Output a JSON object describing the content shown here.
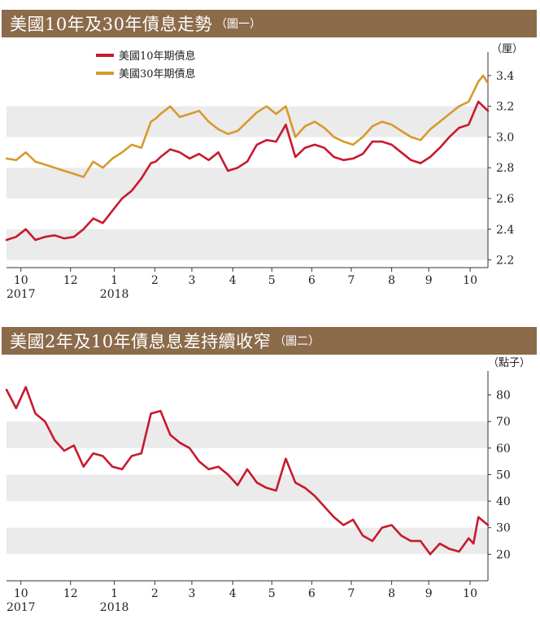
{
  "charts": [
    {
      "title": "美國10年及30年債息走勢",
      "subtitle": "（圖一）",
      "unit_label": "（厘）",
      "legend": [
        {
          "name": "美國10年期債息",
          "color": "#c8192e"
        },
        {
          "name": "美國30年期債息",
          "color": "#d79a2c"
        }
      ],
      "x_ticks": [
        {
          "label": "10",
          "year": "2017",
          "t": 0.03
        },
        {
          "label": "12",
          "year": "",
          "t": 0.133
        },
        {
          "label": "1",
          "year": "2018",
          "t": 0.224
        },
        {
          "label": "2",
          "year": "",
          "t": 0.308
        },
        {
          "label": "3",
          "year": "",
          "t": 0.385
        },
        {
          "label": "4",
          "year": "",
          "t": 0.47
        },
        {
          "label": "5",
          "year": "",
          "t": 0.551
        },
        {
          "label": "6",
          "year": "",
          "t": 0.634
        },
        {
          "label": "7",
          "year": "",
          "t": 0.716
        },
        {
          "label": "8",
          "year": "",
          "t": 0.8
        },
        {
          "label": "9",
          "year": "",
          "t": 0.877
        },
        {
          "label": "10",
          "year": "",
          "t": 0.963
        }
      ]
    },
    {
      "title": "美國2年及10年債息息差持續收窄",
      "subtitle": "（圖二）",
      "unit_label": "（點子）",
      "legend": [],
      "x_ticks": [
        {
          "label": "10",
          "year": "2017",
          "t": 0.03
        },
        {
          "label": "12",
          "year": "",
          "t": 0.133
        },
        {
          "label": "1",
          "year": "2018",
          "t": 0.224
        },
        {
          "label": "2",
          "year": "",
          "t": 0.308
        },
        {
          "label": "3",
          "year": "",
          "t": 0.385
        },
        {
          "label": "4",
          "year": "",
          "t": 0.47
        },
        {
          "label": "5",
          "year": "",
          "t": 0.551
        },
        {
          "label": "6",
          "year": "",
          "t": 0.634
        },
        {
          "label": "7",
          "year": "",
          "t": 0.716
        },
        {
          "label": "8",
          "year": "",
          "t": 0.8
        },
        {
          "label": "9",
          "year": "",
          "t": 0.877
        },
        {
          "label": "10",
          "year": "",
          "t": 0.963
        }
      ]
    }
  ],
  "chart_data": [
    {
      "type": "line",
      "title": "美國10年及30年債息走勢",
      "ylabel": "厘",
      "ylim": [
        2.15,
        3.5
      ],
      "yticks": [
        2.2,
        2.4,
        2.6,
        2.8,
        3.0,
        3.2,
        3.4
      ],
      "grid": "alternating horizontal bands",
      "legend_position": "top-left",
      "series": [
        {
          "name": "美國10年期債息",
          "color": "#c8192e",
          "t": [
            0,
            0.02,
            0.04,
            0.06,
            0.08,
            0.1,
            0.12,
            0.14,
            0.16,
            0.18,
            0.2,
            0.22,
            0.24,
            0.26,
            0.28,
            0.3,
            0.31,
            0.32,
            0.34,
            0.36,
            0.38,
            0.4,
            0.42,
            0.44,
            0.46,
            0.48,
            0.5,
            0.52,
            0.54,
            0.56,
            0.58,
            0.6,
            0.62,
            0.64,
            0.66,
            0.68,
            0.7,
            0.72,
            0.74,
            0.76,
            0.78,
            0.8,
            0.82,
            0.84,
            0.86,
            0.88,
            0.9,
            0.92,
            0.94,
            0.96,
            0.98,
            1.0
          ],
          "values": [
            2.33,
            2.35,
            2.4,
            2.33,
            2.35,
            2.36,
            2.34,
            2.35,
            2.4,
            2.47,
            2.44,
            2.52,
            2.6,
            2.65,
            2.73,
            2.83,
            2.84,
            2.87,
            2.92,
            2.9,
            2.86,
            2.89,
            2.85,
            2.9,
            2.78,
            2.8,
            2.84,
            2.95,
            2.98,
            2.97,
            3.08,
            2.87,
            2.93,
            2.95,
            2.93,
            2.87,
            2.85,
            2.86,
            2.89,
            2.97,
            2.97,
            2.95,
            2.9,
            2.85,
            2.83,
            2.87,
            2.93,
            3.0,
            3.06,
            3.08,
            3.23,
            3.17
          ]
        },
        {
          "name": "美國30年期債息",
          "color": "#d79a2c",
          "t": [
            0,
            0.02,
            0.04,
            0.06,
            0.08,
            0.1,
            0.12,
            0.14,
            0.16,
            0.18,
            0.2,
            0.22,
            0.24,
            0.26,
            0.28,
            0.3,
            0.31,
            0.32,
            0.34,
            0.36,
            0.38,
            0.4,
            0.42,
            0.44,
            0.46,
            0.48,
            0.5,
            0.52,
            0.54,
            0.56,
            0.58,
            0.6,
            0.62,
            0.64,
            0.66,
            0.68,
            0.7,
            0.72,
            0.74,
            0.76,
            0.78,
            0.8,
            0.82,
            0.84,
            0.86,
            0.88,
            0.9,
            0.92,
            0.94,
            0.96,
            0.98,
            0.99,
            1.0
          ],
          "values": [
            2.86,
            2.85,
            2.9,
            2.84,
            2.82,
            2.8,
            2.78,
            2.76,
            2.74,
            2.84,
            2.8,
            2.86,
            2.9,
            2.95,
            2.93,
            3.1,
            3.12,
            3.15,
            3.2,
            3.13,
            3.15,
            3.17,
            3.1,
            3.05,
            3.02,
            3.04,
            3.1,
            3.16,
            3.2,
            3.15,
            3.2,
            3.0,
            3.07,
            3.1,
            3.06,
            3.0,
            2.97,
            2.95,
            3.0,
            3.07,
            3.1,
            3.08,
            3.04,
            3.0,
            2.98,
            3.05,
            3.1,
            3.15,
            3.2,
            3.23,
            3.36,
            3.4,
            3.35
          ]
        }
      ]
    },
    {
      "type": "line",
      "title": "美國2年及10年債息息差持續收窄",
      "ylabel": "點子",
      "ylim": [
        10,
        86
      ],
      "yticks": [
        20,
        30,
        40,
        50,
        60,
        70,
        80
      ],
      "grid": "alternating horizontal bands",
      "series": [
        {
          "name": "",
          "color": "#c8192e",
          "t": [
            0,
            0.02,
            0.04,
            0.06,
            0.08,
            0.1,
            0.12,
            0.14,
            0.16,
            0.18,
            0.2,
            0.22,
            0.24,
            0.26,
            0.28,
            0.3,
            0.32,
            0.34,
            0.36,
            0.38,
            0.4,
            0.42,
            0.44,
            0.46,
            0.48,
            0.5,
            0.52,
            0.54,
            0.56,
            0.58,
            0.6,
            0.62,
            0.64,
            0.66,
            0.68,
            0.7,
            0.72,
            0.74,
            0.76,
            0.78,
            0.8,
            0.82,
            0.84,
            0.86,
            0.88,
            0.9,
            0.92,
            0.94,
            0.96,
            0.97,
            0.98,
            1.0
          ],
          "values": [
            82,
            75,
            83,
            73,
            70,
            63,
            59,
            61,
            53,
            58,
            57,
            53,
            52,
            57,
            58,
            73,
            74,
            65,
            62,
            60,
            55,
            52,
            53,
            50,
            46,
            52,
            47,
            45,
            44,
            56,
            47,
            45,
            42,
            38,
            34,
            31,
            33,
            27,
            25,
            30,
            31,
            27,
            25,
            25,
            20,
            24,
            22,
            21,
            26,
            24,
            34,
            31
          ]
        }
      ]
    }
  ]
}
